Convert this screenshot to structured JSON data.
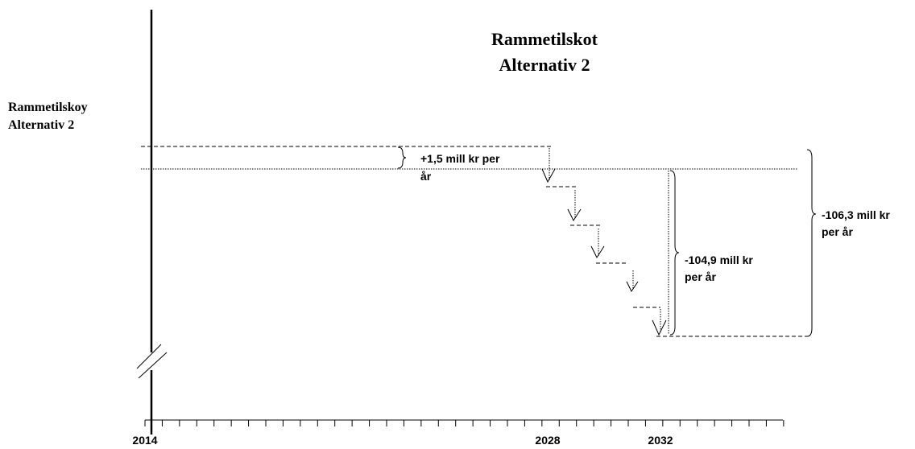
{
  "title": [
    "Rammetilskot",
    "Alternativ 2"
  ],
  "left_label": [
    "Rammetilskoy",
    "Alternativ 2"
  ],
  "annotations": {
    "increase": [
      "+1,5 mill kr per",
      "år"
    ],
    "reduction": [
      "-104,9 mill kr",
      "per år"
    ],
    "total": [
      "-106,3 mill kr",
      "per år"
    ]
  },
  "axis_labels": [
    "2014",
    "2028",
    "2032"
  ]
}
